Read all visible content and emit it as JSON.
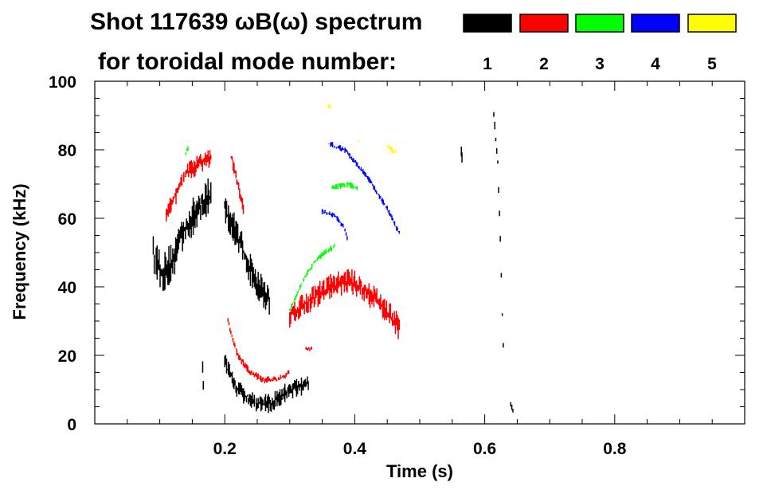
{
  "chart_data": {
    "type": "heatmap",
    "title_line1": "Shot 117639 ωB(ω) spectrum",
    "title_line2": "for toroidal mode number:",
    "xlabel": "Time (s)",
    "ylabel": "Frequency (kHz)",
    "xlim": [
      0,
      1.0
    ],
    "ylim": [
      0,
      100
    ],
    "xticks": [
      0.2,
      0.4,
      0.6,
      0.8
    ],
    "xtick_labels": [
      "0.2",
      "0.4",
      "0.6",
      "0.8"
    ],
    "yticks": [
      0,
      20,
      40,
      60,
      80,
      100
    ],
    "ytick_labels": [
      "0",
      "20",
      "40",
      "60",
      "80",
      "100"
    ],
    "x_minor_step": 0.05,
    "y_minor_step": 5,
    "legend": [
      {
        "label": "1",
        "color": "#000000"
      },
      {
        "label": "2",
        "color": "#ff0000"
      },
      {
        "label": "3",
        "color": "#00ff00"
      },
      {
        "label": "4",
        "color": "#0000ff"
      },
      {
        "label": "5",
        "color": "#ffff00"
      }
    ],
    "series": [
      {
        "mode": 1,
        "color": "#000000",
        "tracks": [
          {
            "spread": 6,
            "points": [
              [
                0.09,
                50
              ],
              [
                0.105,
                44
              ],
              [
                0.12,
                48
              ],
              [
                0.135,
                56
              ],
              [
                0.15,
                60
              ],
              [
                0.17,
                66
              ],
              [
                0.18,
                66
              ]
            ]
          },
          {
            "spread": 5,
            "points": [
              [
                0.2,
                63
              ],
              [
                0.22,
                55
              ],
              [
                0.235,
                47
              ],
              [
                0.25,
                41
              ],
              [
                0.27,
                36
              ]
            ]
          },
          {
            "spread": 3,
            "points": [
              [
                0.2,
                18
              ],
              [
                0.22,
                10
              ],
              [
                0.25,
                6
              ],
              [
                0.27,
                6
              ],
              [
                0.3,
                10
              ],
              [
                0.33,
                12
              ]
            ]
          },
          {
            "spread": 2,
            "points": [
              [
                0.614,
                90
              ],
              [
                0.62,
                76
              ],
              [
                0.624,
                55
              ],
              [
                0.627,
                32
              ],
              [
                0.63,
                14
              ]
            ]
          },
          {
            "spread": 2,
            "points": [
              [
                0.564,
                80
              ],
              [
                0.566,
                76
              ]
            ]
          },
          {
            "spread": 3,
            "points": [
              [
                0.166,
                17
              ],
              [
                0.168,
                7
              ]
            ]
          },
          {
            "spread": 1,
            "points": [
              [
                0.64,
                6
              ],
              [
                0.645,
                3
              ]
            ]
          }
        ]
      },
      {
        "mode": 2,
        "color": "#ff0000",
        "tracks": [
          {
            "spread": 3,
            "points": [
              [
                0.11,
                62
              ],
              [
                0.125,
                67
              ],
              [
                0.14,
                73
              ],
              [
                0.16,
                76
              ],
              [
                0.18,
                78
              ]
            ]
          },
          {
            "spread": 2,
            "points": [
              [
                0.21,
                78
              ],
              [
                0.22,
                70
              ],
              [
                0.23,
                62
              ]
            ]
          },
          {
            "spread": 1.2,
            "points": [
              [
                0.205,
                30
              ],
              [
                0.22,
                20
              ],
              [
                0.24,
                15
              ],
              [
                0.26,
                13
              ],
              [
                0.28,
                13
              ],
              [
                0.3,
                15
              ]
            ]
          },
          {
            "spread": 4,
            "points": [
              [
                0.3,
                32
              ],
              [
                0.33,
                36
              ],
              [
                0.36,
                40
              ],
              [
                0.39,
                42
              ],
              [
                0.41,
                40
              ],
              [
                0.44,
                35
              ],
              [
                0.47,
                28
              ]
            ]
          },
          {
            "spread": 1,
            "points": [
              [
                0.325,
                22
              ],
              [
                0.335,
                22
              ]
            ]
          }
        ]
      },
      {
        "mode": 3,
        "color": "#00ff00",
        "tracks": [
          {
            "spread": 1,
            "points": [
              [
                0.14,
                79
              ],
              [
                0.145,
                81
              ]
            ]
          },
          {
            "spread": 1,
            "points": [
              [
                0.3,
                33
              ],
              [
                0.32,
                42
              ],
              [
                0.34,
                48
              ],
              [
                0.36,
                51
              ],
              [
                0.37,
                52
              ]
            ]
          },
          {
            "spread": 1,
            "points": [
              [
                0.365,
                69
              ],
              [
                0.39,
                70
              ],
              [
                0.405,
                69
              ]
            ]
          }
        ]
      },
      {
        "mode": 4,
        "color": "#0000ff",
        "tracks": [
          {
            "spread": 1,
            "points": [
              [
                0.36,
                82
              ],
              [
                0.385,
                80
              ],
              [
                0.42,
                72
              ],
              [
                0.45,
                63
              ],
              [
                0.47,
                55
              ]
            ]
          },
          {
            "spread": 1,
            "points": [
              [
                0.35,
                62
              ],
              [
                0.37,
                61
              ],
              [
                0.385,
                57
              ],
              [
                0.39,
                53
              ]
            ]
          }
        ]
      },
      {
        "mode": 5,
        "color": "#ffff00",
        "tracks": [
          {
            "spread": 1,
            "points": [
              [
                0.36,
                93
              ],
              [
                0.365,
                92
              ]
            ]
          },
          {
            "spread": 1,
            "points": [
              [
                0.405,
                83
              ],
              [
                0.407,
                82
              ]
            ]
          },
          {
            "spread": 1,
            "points": [
              [
                0.45,
                81
              ],
              [
                0.465,
                79
              ]
            ]
          }
        ]
      }
    ]
  }
}
